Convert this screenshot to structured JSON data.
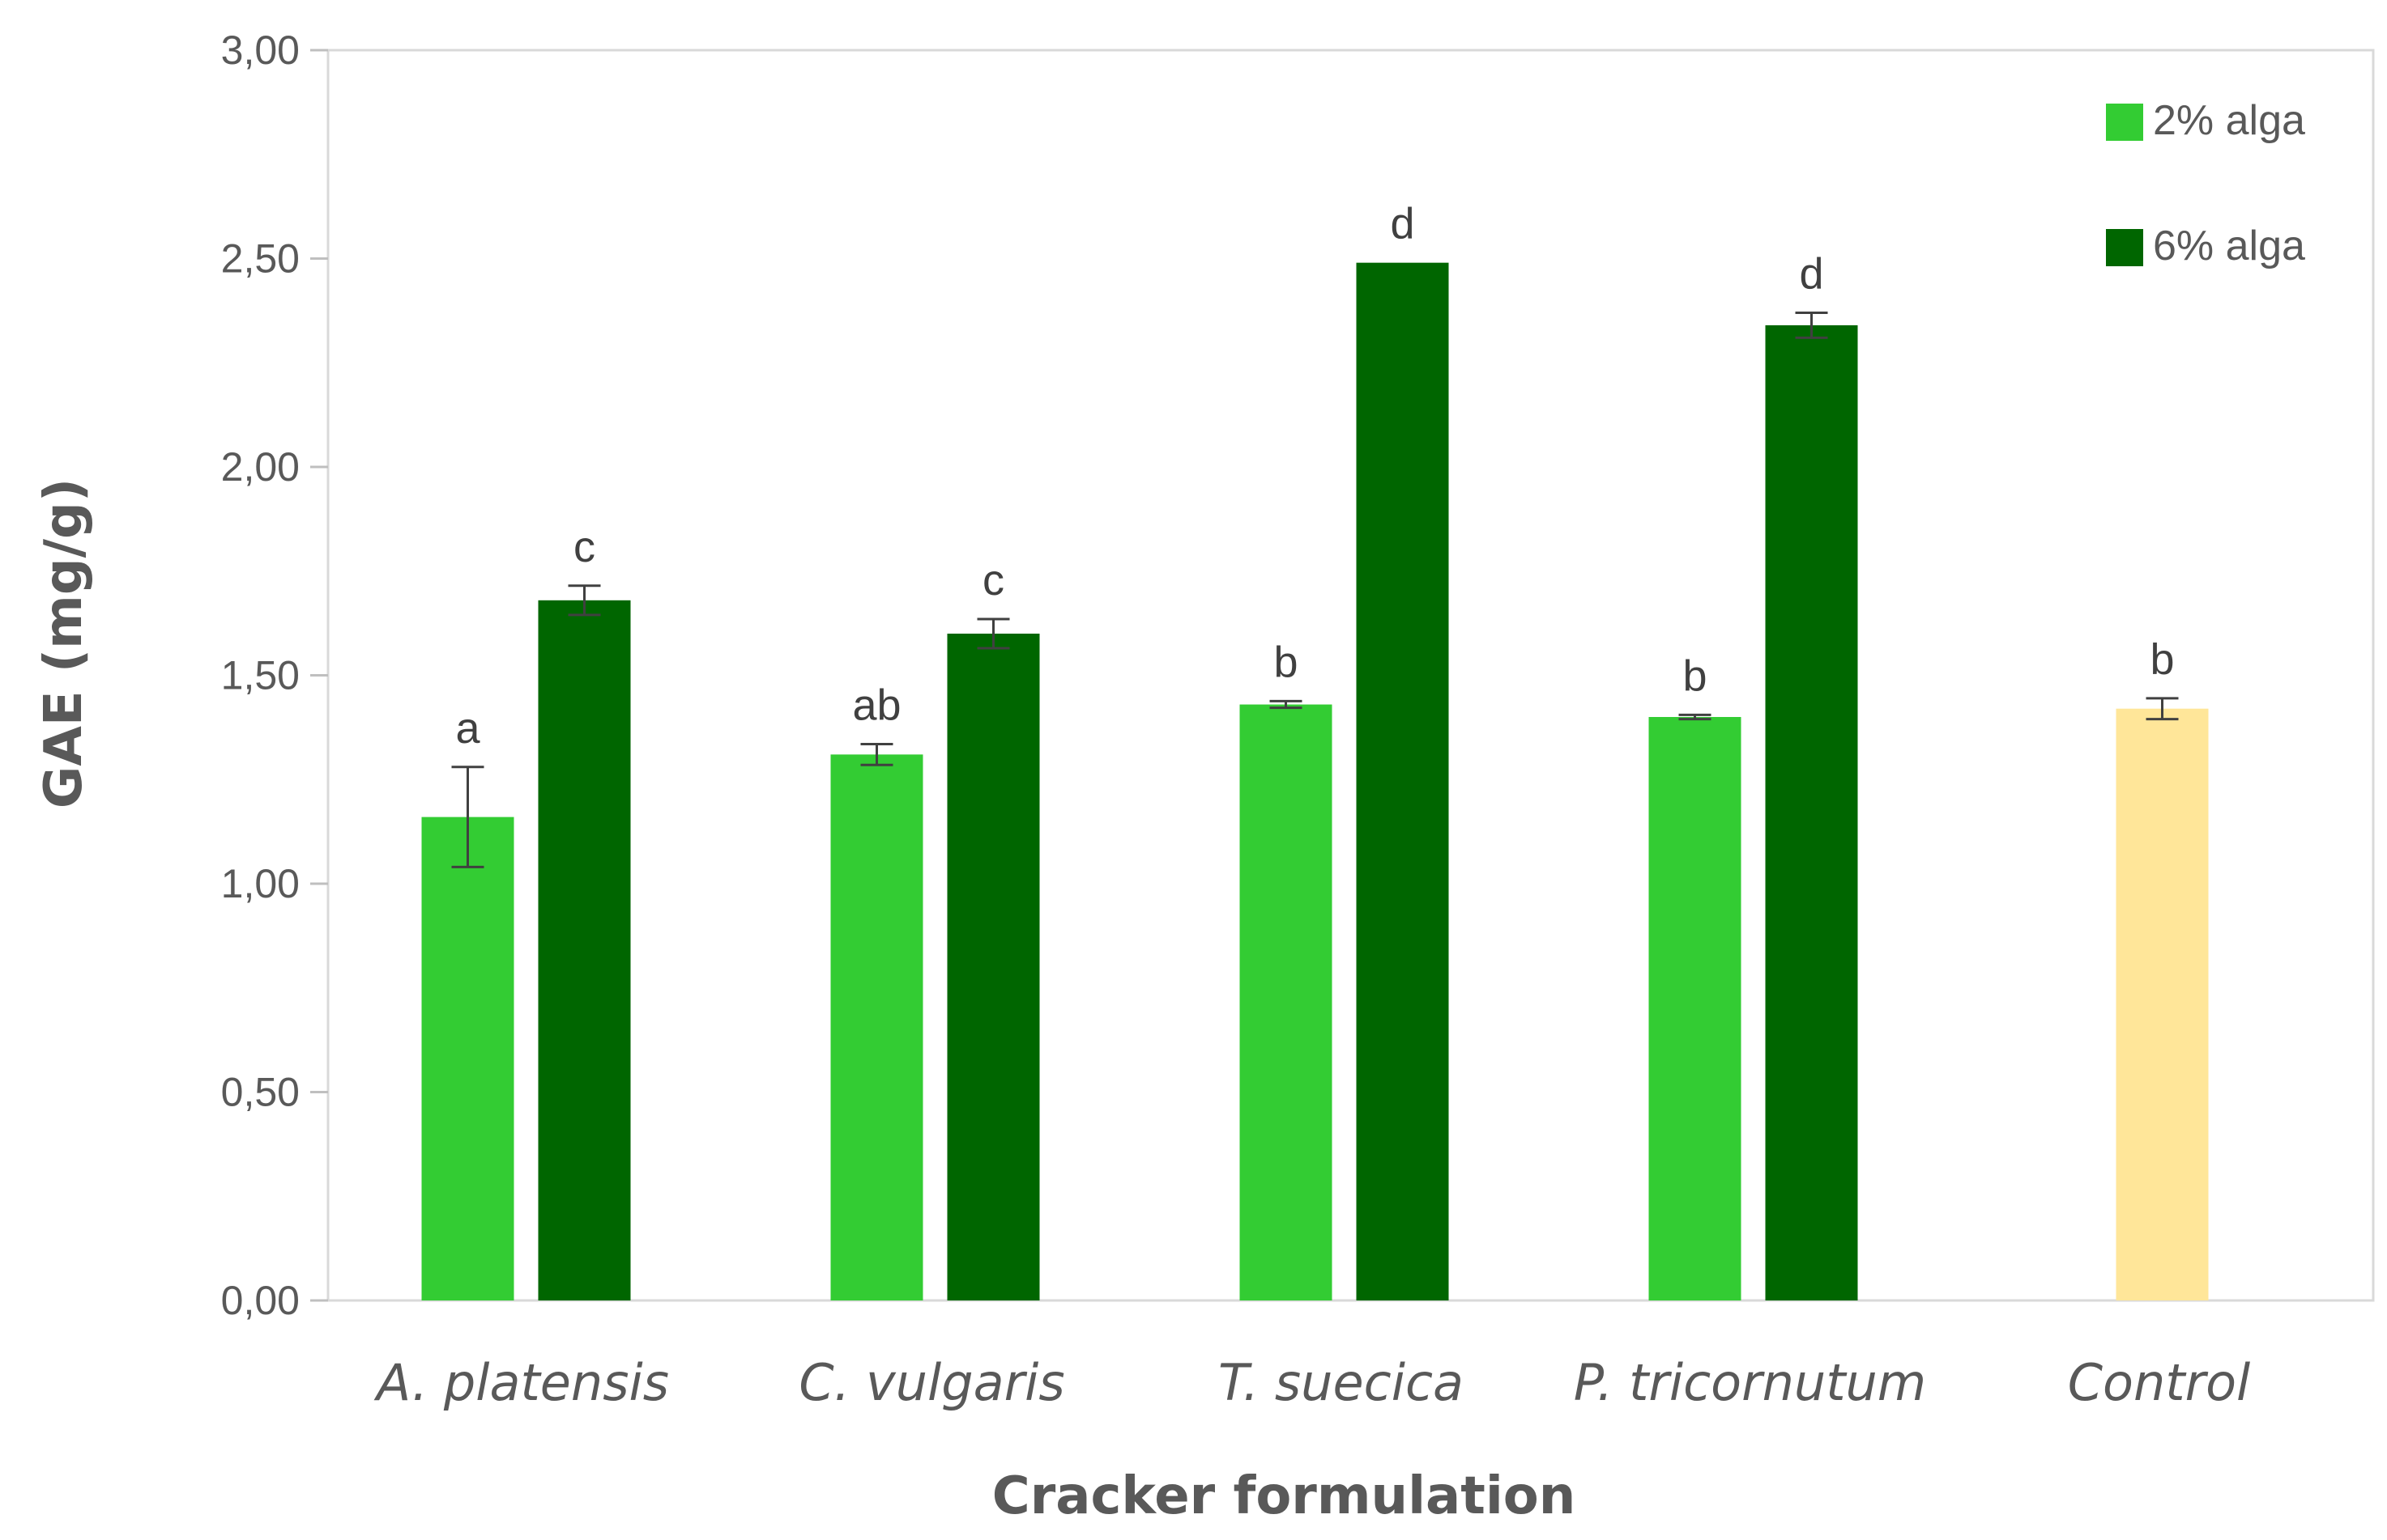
{
  "chart_data": {
    "type": "bar",
    "xlabel": "Cracker formulation",
    "ylabel": "GAE (mg/g)",
    "ylim": [
      0,
      3
    ],
    "yticks": [
      "0,00",
      "0,50",
      "1,00",
      "1,50",
      "2,00",
      "2,50",
      "3,00"
    ],
    "ytick_values": [
      0,
      0.5,
      1,
      1.5,
      2,
      2.5,
      3
    ],
    "categories": [
      "A. platensis",
      "C. vulgaris",
      "T. suecica",
      "P. tricornutum",
      "Control"
    ],
    "series": [
      {
        "name": "2% alga",
        "color": "#33cc33",
        "values": [
          1.16,
          1.31,
          1.43,
          1.4,
          null
        ],
        "errors": [
          0.12,
          0.025,
          0.008,
          0.005,
          null
        ],
        "letters": [
          "a",
          "ab",
          "b",
          "b",
          null
        ]
      },
      {
        "name": "6% alga",
        "color": "#006600",
        "values": [
          1.68,
          1.6,
          2.49,
          2.34,
          null
        ],
        "errors": [
          0.035,
          0.035,
          0.0,
          0.03,
          null
        ],
        "letters": [
          "c",
          "c",
          "d",
          "d",
          null
        ]
      }
    ],
    "control": {
      "category_index": 4,
      "value": 1.42,
      "error": 0.025,
      "letter": "b",
      "color": "#ffe699"
    },
    "grid": false,
    "legend_position": "top-right"
  }
}
